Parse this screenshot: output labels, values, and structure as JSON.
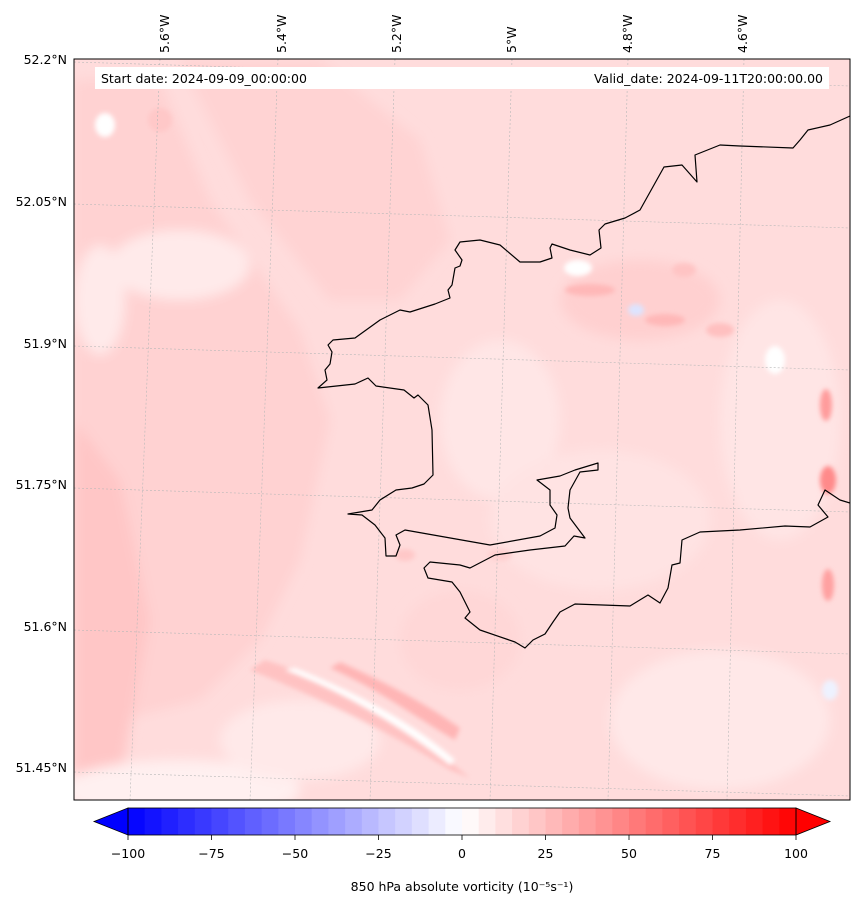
{
  "map": {
    "start_date": "Start date: 2024-09-09_00:00:00",
    "valid_date": "Valid_date: 2024-09-11T20:00:00.00",
    "lon_labels": [
      "5.6°W",
      "5.4°W",
      "5.2°W",
      "5°W",
      "4.8°W",
      "4.6°W"
    ],
    "lat_labels": [
      "52.2°N",
      "52.05°N",
      "51.9°N",
      "51.75°N",
      "51.6°N",
      "51.45°N"
    ]
  },
  "colorbar": {
    "label": "850 hPa absolute vorticity (10⁻⁵s⁻¹)",
    "ticks": [
      "−100",
      "−75",
      "−50",
      "−25",
      "0",
      "25",
      "50",
      "75",
      "100"
    ],
    "min": -100,
    "max": 100,
    "step": 5,
    "colormap": "bwr",
    "extend": "both"
  },
  "colors": {
    "negative": "#0000ff",
    "zero": "#ffffff",
    "positive": "#ff0000",
    "coastline": "#000000"
  }
}
